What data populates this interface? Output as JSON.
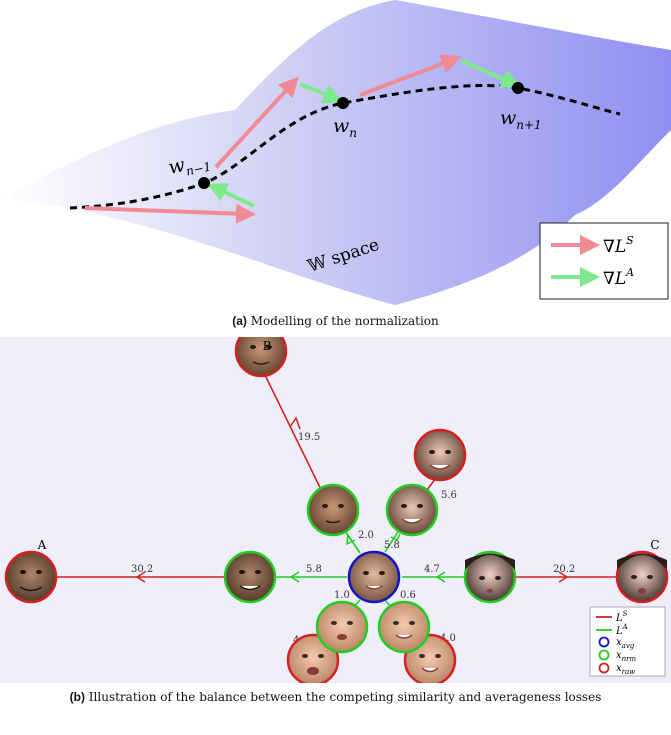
{
  "panel_a": {
    "points": [
      {
        "base": "w",
        "sub": "n−1"
      },
      {
        "base": "w",
        "sub": "n"
      },
      {
        "base": "w",
        "sub": "n+1"
      }
    ],
    "space_label": "𝕎 space",
    "legend": [
      {
        "base": "∇L",
        "sup": "S",
        "color": "#f08a94"
      },
      {
        "base": "∇L",
        "sup": "A",
        "color": "#7ee88c"
      }
    ],
    "caption_tag": "(a)",
    "caption_text": "Modelling of the normalization"
  },
  "panel_b": {
    "endpoints": {
      "a": "A",
      "b": "B",
      "c": "C"
    },
    "edge_labels": [
      "19.5",
      "30.2",
      "5.8",
      "2.0",
      "5.8",
      "5.6",
      "4.7",
      "20.2",
      "1.0",
      "0.6",
      "4.9",
      "4.0"
    ],
    "legend": [
      {
        "base": "L",
        "sup": "S",
        "sub": "",
        "kind": "line",
        "color": "#d62020"
      },
      {
        "base": "L",
        "sup": "A",
        "sub": "",
        "kind": "line",
        "color": "#22cc22"
      },
      {
        "base": "x",
        "sup": "",
        "sub": "avg",
        "kind": "circle",
        "color": "#1414c8"
      },
      {
        "base": "x",
        "sup": "",
        "sub": "nrm",
        "kind": "circle",
        "color": "#22cc22"
      },
      {
        "base": "x",
        "sup": "",
        "sub": "raw",
        "kind": "circle",
        "color": "#d62020"
      }
    ],
    "caption_tag": "(b)",
    "caption_text": "Illustration of the balance between the competing similarity and averageness losses"
  }
}
